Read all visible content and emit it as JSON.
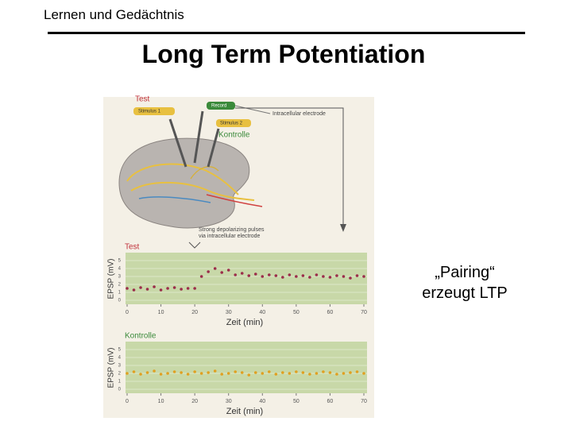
{
  "header": {
    "title": "Lernen und Gedächtnis"
  },
  "slide": {
    "title": "Long Term Potentiation",
    "note_lines": [
      "„Pairing“",
      "erzeugt LTP"
    ]
  },
  "figure": {
    "diagram": {
      "test_label": "Test",
      "stimulus_1": "Stimulus 1",
      "record": "Record",
      "stimulus_2": "Stimulus 2",
      "control_label": "Kontrolle",
      "electrode": "Intracellular electrode",
      "pulses": [
        "Strong depolarizing pulses",
        "via intracellular electrode"
      ]
    },
    "plots": [
      {
        "type": "scatter",
        "title": "Test",
        "title_color": "#c0303a",
        "color": "#9b2d4a",
        "xlabel": "Zeit (min)",
        "ylabel": "EPSP (mV)",
        "x": [
          0,
          2,
          4,
          6,
          8,
          10,
          12,
          14,
          16,
          18,
          20,
          22,
          24,
          26,
          28,
          30,
          32,
          34,
          36,
          38,
          40,
          42,
          44,
          46,
          48,
          50,
          52,
          54,
          56,
          58,
          60,
          62,
          64,
          66,
          68,
          70
        ],
        "values": [
          1.5,
          1.3,
          1.6,
          1.4,
          1.7,
          1.3,
          1.5,
          1.6,
          1.4,
          1.5,
          1.5,
          3.0,
          3.6,
          4.0,
          3.5,
          3.8,
          3.2,
          3.4,
          3.1,
          3.3,
          3.0,
          3.2,
          3.1,
          2.9,
          3.2,
          3.0,
          3.1,
          2.9,
          3.2,
          3.0,
          2.9,
          3.1,
          3.0,
          2.8,
          3.1,
          3.0
        ],
        "xlim": [
          0,
          70
        ],
        "ylim": [
          0,
          5
        ],
        "xticks": [
          0,
          10,
          20,
          30,
          40,
          50,
          60,
          70
        ],
        "yticks": [
          0,
          1,
          2,
          3,
          4,
          5
        ]
      },
      {
        "type": "scatter",
        "title": "Kontrolle",
        "title_color": "#3a8a3a",
        "color": "#e0a020",
        "xlabel": "Zeit (min)",
        "ylabel": "EPSP (mV)",
        "x": [
          0,
          2,
          4,
          6,
          8,
          10,
          12,
          14,
          16,
          18,
          20,
          22,
          24,
          26,
          28,
          30,
          32,
          34,
          36,
          38,
          40,
          42,
          44,
          46,
          48,
          50,
          52,
          54,
          56,
          58,
          60,
          62,
          64,
          66,
          68,
          70
        ],
        "values": [
          2.0,
          2.2,
          1.9,
          2.1,
          2.3,
          1.9,
          2.0,
          2.2,
          2.1,
          1.9,
          2.2,
          2.0,
          2.1,
          2.3,
          1.9,
          2.0,
          2.2,
          2.1,
          1.8,
          2.1,
          2.0,
          2.2,
          1.9,
          2.1,
          2.0,
          2.2,
          2.1,
          1.9,
          2.0,
          2.2,
          2.1,
          1.9,
          2.0,
          2.1,
          2.2,
          2.0
        ],
        "xlim": [
          0,
          70
        ],
        "ylim": [
          0,
          5
        ],
        "xticks": [
          0,
          10,
          20,
          30,
          40,
          50,
          60,
          70
        ],
        "yticks": [
          0,
          1,
          2,
          3,
          4,
          5
        ]
      }
    ]
  }
}
